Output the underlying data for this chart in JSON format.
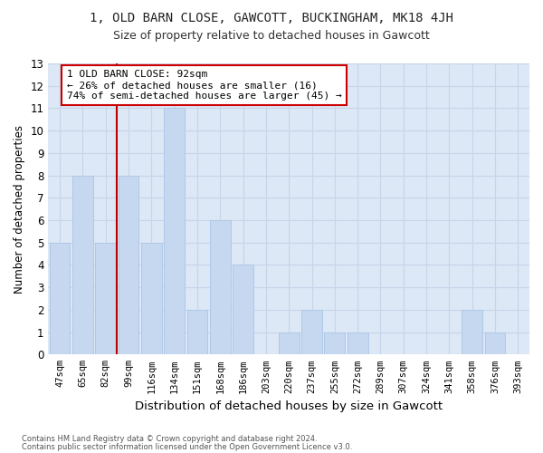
{
  "title1": "1, OLD BARN CLOSE, GAWCOTT, BUCKINGHAM, MK18 4JH",
  "title2": "Size of property relative to detached houses in Gawcott",
  "xlabel": "Distribution of detached houses by size in Gawcott",
  "ylabel": "Number of detached properties",
  "categories": [
    "47sqm",
    "65sqm",
    "82sqm",
    "99sqm",
    "116sqm",
    "134sqm",
    "151sqm",
    "168sqm",
    "186sqm",
    "203sqm",
    "220sqm",
    "237sqm",
    "255sqm",
    "272sqm",
    "289sqm",
    "307sqm",
    "324sqm",
    "341sqm",
    "358sqm",
    "376sqm",
    "393sqm"
  ],
  "values": [
    5,
    8,
    5,
    8,
    5,
    11,
    2,
    6,
    4,
    0,
    1,
    2,
    1,
    1,
    0,
    0,
    0,
    0,
    2,
    1,
    0
  ],
  "bar_color": "#c5d8f0",
  "bar_edgecolor": "#b0c8e8",
  "grid_color": "#c8d4e8",
  "plot_bg_color": "#dce8f5",
  "fig_bg_color": "#ffffff",
  "redline_x": 2.5,
  "annotation_text": "1 OLD BARN CLOSE: 92sqm\n← 26% of detached houses are smaller (16)\n74% of semi-detached houses are larger (45) →",
  "annotation_box_facecolor": "#ffffff",
  "annotation_box_edgecolor": "#cc0000",
  "footnote1": "Contains HM Land Registry data © Crown copyright and database right 2024.",
  "footnote2": "Contains public sector information licensed under the Open Government Licence v3.0.",
  "ylim": [
    0,
    13
  ],
  "yticks": [
    0,
    1,
    2,
    3,
    4,
    5,
    6,
    7,
    8,
    9,
    10,
    11,
    12,
    13
  ]
}
